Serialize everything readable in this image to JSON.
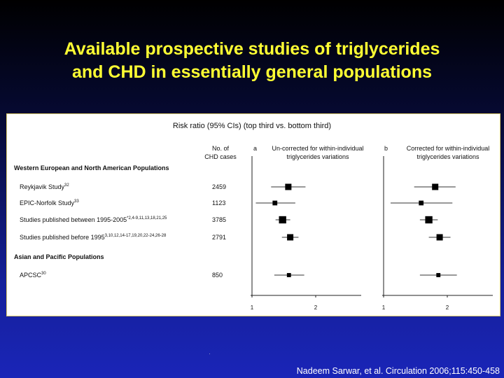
{
  "slide": {
    "title_line1": "Available prospective studies of triglycerides",
    "title_line2": "and CHD in essentially general populations",
    "citation": "Nadeem Sarwar, et al. Circulation 2006;115:450-458",
    "colors": {
      "title": "#ffff33",
      "background_top": "#000000",
      "background_bottom": "#1a25b8",
      "panel": "#ffffff"
    }
  },
  "chart_data": {
    "type": "forest",
    "title": "Risk ratio (95% CIs) (top third vs. bottom third)",
    "cases_header_line1": "No. of",
    "cases_header_line2": "CHD cases",
    "panels": [
      {
        "letter": "a",
        "title_line1": "Un-corrected for within-individual",
        "title_line2": "triglycerides variations",
        "xlim": [
          1,
          2.75
        ],
        "ticks": [
          "1",
          "2"
        ]
      },
      {
        "letter": "b",
        "title_line1": "Corrected for within-individual",
        "title_line2": "triglycerides variations",
        "xlim": [
          1,
          2.75
        ],
        "ticks": [
          "1",
          "2"
        ]
      }
    ],
    "groups": [
      {
        "name": "Western European and North American Populations",
        "studies": [
          {
            "name": "Reykjavik Study",
            "sup": "32",
            "cases": "2459",
            "a": {
              "est": 1.57,
              "lo": 1.3,
              "hi": 1.84
            },
            "b": {
              "est": 1.81,
              "lo": 1.48,
              "hi": 2.13
            }
          },
          {
            "name": "EPIC-Norfolk Study",
            "sup": "33",
            "cases": "1123",
            "a": {
              "est": 1.36,
              "lo": 1.06,
              "hi": 1.68
            },
            "b": {
              "est": 1.59,
              "lo": 1.11,
              "hi": 2.08
            }
          },
          {
            "name": "Studies published between 1995-2005",
            "sup": "*2,4-9,11,13,18,21,25",
            "cases": "3785",
            "a": {
              "est": 1.48,
              "lo": 1.37,
              "hi": 1.6
            },
            "b": {
              "est": 1.71,
              "lo": 1.57,
              "hi": 1.85
            }
          },
          {
            "name": "Studies published before 1995",
            "sup": "3,10,12,14-17,19,20,22-24,26-28",
            "cases": "2791",
            "a": {
              "est": 1.6,
              "lo": 1.47,
              "hi": 1.73
            },
            "b": {
              "est": 1.88,
              "lo": 1.71,
              "hi": 2.05
            }
          }
        ]
      },
      {
        "name": "Asian and Pacific Populations",
        "studies": [
          {
            "name": "APCSC",
            "sup": "30",
            "cases": "850",
            "a": {
              "est": 1.58,
              "lo": 1.35,
              "hi": 1.82
            },
            "b": {
              "est": 1.86,
              "lo": 1.57,
              "hi": 2.15
            }
          }
        ]
      }
    ],
    "marker_sizes": [
      1,
      0.75,
      1.15,
      1,
      0.65
    ]
  }
}
